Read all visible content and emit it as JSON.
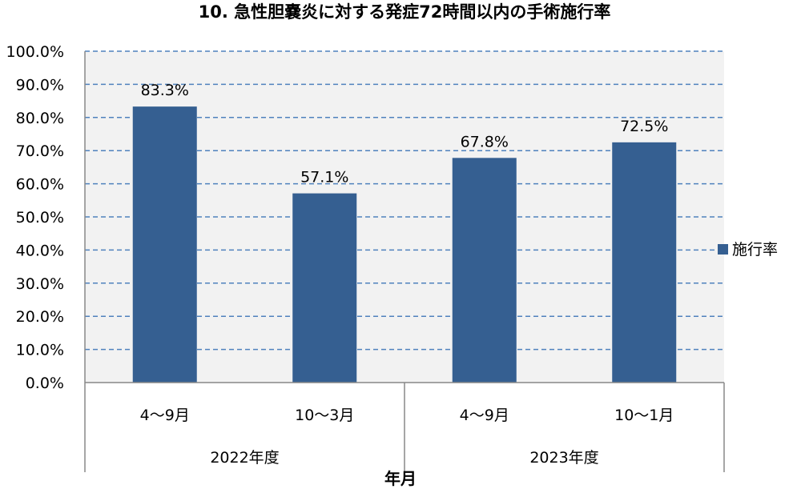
{
  "chart_data": {
    "type": "bar",
    "title": "10. 急性胆嚢炎に対する発症72時間以内の手術施行率",
    "xlabel": "年月",
    "ylabel": "",
    "categories": [
      "4～9月",
      "10～3月",
      "4～9月",
      "10～1月"
    ],
    "groups": [
      {
        "label": "2022年度",
        "categories": [
          "4～9月",
          "10～3月"
        ]
      },
      {
        "label": "2023年度",
        "categories": [
          "4～9月",
          "10～1月"
        ]
      }
    ],
    "series": [
      {
        "name": "施行率",
        "values": [
          83.3,
          57.1,
          67.8,
          72.5
        ],
        "color": "#355F91"
      }
    ],
    "data_labels": [
      "83.3%",
      "57.1%",
      "67.8%",
      "72.5%"
    ],
    "ylim": [
      0,
      100
    ],
    "ytick_labels": [
      "0.0%",
      "10.0%",
      "20.0%",
      "30.0%",
      "40.0%",
      "50.0%",
      "60.0%",
      "70.0%",
      "80.0%",
      "90.0%",
      "100.0%"
    ],
    "grid": true,
    "grid_style": "dashed",
    "grid_color": "#4F81BD",
    "plot_background": "#F2F2F2",
    "legend_position": "right"
  }
}
